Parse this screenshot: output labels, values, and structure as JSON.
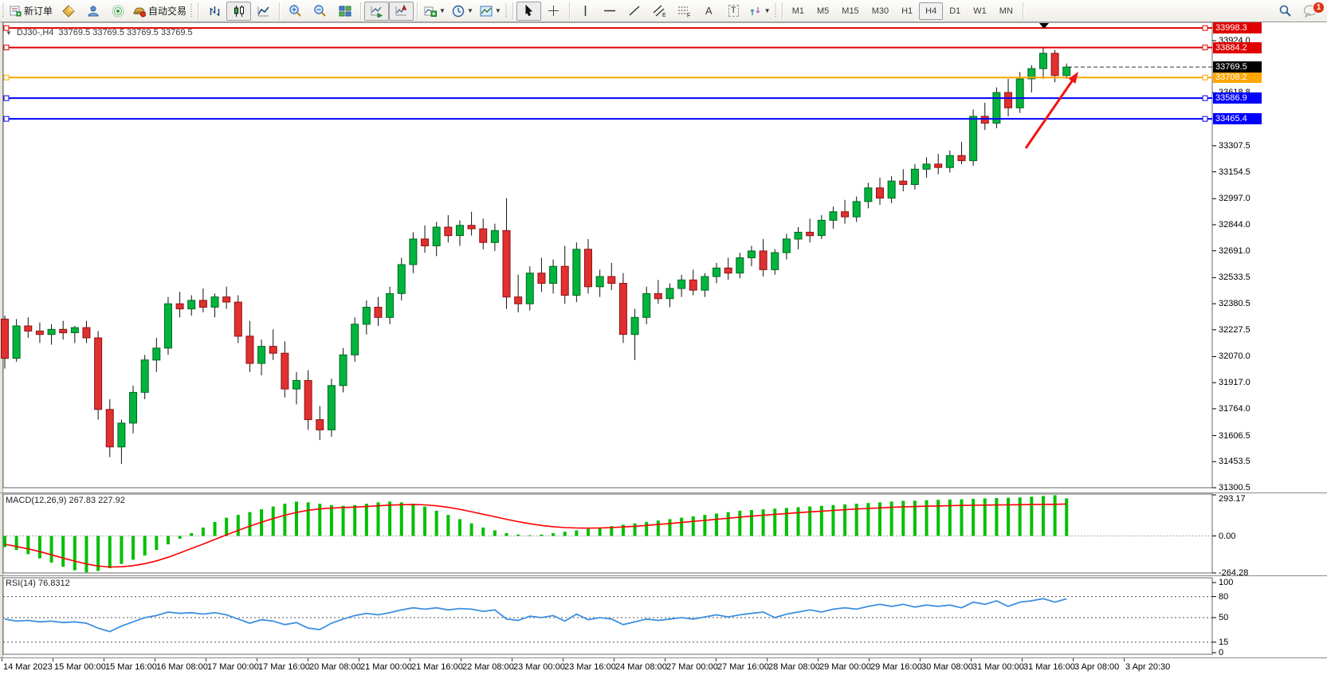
{
  "toolbar": {
    "new_order_label": "新订单",
    "auto_trading_label": "自动交易",
    "timeframes": [
      "M1",
      "M5",
      "M15",
      "M30",
      "H1",
      "H4",
      "D1",
      "W1",
      "MN"
    ],
    "active_timeframe": "H4",
    "chat_badge": "1",
    "tool_letters": {
      "channel": "E",
      "fibo": "F",
      "text": "A",
      "label": "T"
    }
  },
  "header": {
    "symbol": "DJ30-,H4",
    "ohlc": "33769.5 33769.5 33769.5 33769.5",
    "collapse_icon": "▼"
  },
  "chart_data": {
    "type": "candlestick",
    "symbol": "DJ30-",
    "timeframe": "H4",
    "price_axis": {
      "ticks": [
        "33924.0",
        "33618.8",
        "33307.5",
        "33154.5",
        "32997.0",
        "32844.0",
        "32691.0",
        "32533.5",
        "32380.5",
        "32227.5",
        "32070.0",
        "31917.0",
        "31764.0",
        "31606.5",
        "31453.5",
        "31300.5"
      ],
      "min": 31300.5,
      "max": 33998.3
    },
    "hlines": [
      {
        "price": 33998.3,
        "label": "33998.3",
        "color": "#e00000"
      },
      {
        "price": 33884.2,
        "label": "33884.2",
        "color": "#e00000"
      },
      {
        "price": 33708.2,
        "label": "33708.2",
        "color": "#ffa500"
      },
      {
        "price": 33586.9,
        "label": "33586.9",
        "color": "#0000ff"
      },
      {
        "price": 33465.4,
        "label": "33465.4",
        "color": "#0000ff"
      }
    ],
    "current_price": {
      "value": 33769.5,
      "label": "33769.5"
    },
    "candles": [
      [
        32290,
        32310,
        32000,
        32060
      ],
      [
        32060,
        32290,
        32040,
        32250
      ],
      [
        32250,
        32300,
        32180,
        32220
      ],
      [
        32220,
        32270,
        32150,
        32200
      ],
      [
        32200,
        32260,
        32140,
        32230
      ],
      [
        32230,
        32280,
        32170,
        32210
      ],
      [
        32210,
        32250,
        32150,
        32240
      ],
      [
        32240,
        32280,
        32150,
        32180
      ],
      [
        32180,
        32220,
        31700,
        31760
      ],
      [
        31760,
        31820,
        31480,
        31540
      ],
      [
        31540,
        31700,
        31440,
        31680
      ],
      [
        31680,
        31900,
        31620,
        31860
      ],
      [
        31860,
        32080,
        31820,
        32050
      ],
      [
        32050,
        32180,
        31980,
        32120
      ],
      [
        32120,
        32420,
        32080,
        32380
      ],
      [
        32380,
        32450,
        32300,
        32350
      ],
      [
        32350,
        32430,
        32310,
        32400
      ],
      [
        32400,
        32470,
        32330,
        32360
      ],
      [
        32360,
        32440,
        32300,
        32420
      ],
      [
        32420,
        32480,
        32350,
        32390
      ],
      [
        32390,
        32430,
        32150,
        32190
      ],
      [
        32190,
        32280,
        31980,
        32030
      ],
      [
        32030,
        32170,
        31960,
        32130
      ],
      [
        32130,
        32230,
        32050,
        32090
      ],
      [
        32090,
        32160,
        31830,
        31880
      ],
      [
        31880,
        31980,
        31790,
        31930
      ],
      [
        31930,
        31990,
        31640,
        31700
      ],
      [
        31700,
        31780,
        31580,
        31640
      ],
      [
        31640,
        31940,
        31600,
        31900
      ],
      [
        31900,
        32120,
        31860,
        32080
      ],
      [
        32080,
        32300,
        32040,
        32260
      ],
      [
        32260,
        32400,
        32200,
        32360
      ],
      [
        32360,
        32420,
        32250,
        32300
      ],
      [
        32300,
        32480,
        32260,
        32440
      ],
      [
        32440,
        32650,
        32400,
        32610
      ],
      [
        32610,
        32800,
        32560,
        32760
      ],
      [
        32760,
        32840,
        32680,
        32720
      ],
      [
        32720,
        32860,
        32660,
        32830
      ],
      [
        32830,
        32900,
        32740,
        32780
      ],
      [
        32780,
        32870,
        32720,
        32840
      ],
      [
        32840,
        32920,
        32780,
        32820
      ],
      [
        32820,
        32880,
        32700,
        32740
      ],
      [
        32740,
        32850,
        32690,
        32810
      ],
      [
        32810,
        33000,
        32350,
        32420
      ],
      [
        32420,
        32550,
        32330,
        32380
      ],
      [
        32380,
        32600,
        32340,
        32560
      ],
      [
        32560,
        32650,
        32450,
        32500
      ],
      [
        32500,
        32640,
        32440,
        32600
      ],
      [
        32600,
        32720,
        32380,
        32430
      ],
      [
        32430,
        32740,
        32390,
        32700
      ],
      [
        32700,
        32760,
        32440,
        32480
      ],
      [
        32480,
        32580,
        32420,
        32540
      ],
      [
        32540,
        32620,
        32460,
        32500
      ],
      [
        32500,
        32560,
        32150,
        32200
      ],
      [
        32200,
        32350,
        32050,
        32300
      ],
      [
        32300,
        32480,
        32260,
        32440
      ],
      [
        32440,
        32520,
        32380,
        32410
      ],
      [
        32410,
        32500,
        32360,
        32470
      ],
      [
        32470,
        32550,
        32420,
        32520
      ],
      [
        32520,
        32580,
        32430,
        32460
      ],
      [
        32460,
        32560,
        32420,
        32540
      ],
      [
        32540,
        32620,
        32500,
        32590
      ],
      [
        32590,
        32650,
        32520,
        32560
      ],
      [
        32560,
        32680,
        32530,
        32650
      ],
      [
        32650,
        32720,
        32600,
        32690
      ],
      [
        32690,
        32760,
        32540,
        32580
      ],
      [
        32580,
        32700,
        32550,
        32680
      ],
      [
        32680,
        32790,
        32640,
        32760
      ],
      [
        32760,
        32830,
        32700,
        32800
      ],
      [
        32800,
        32880,
        32740,
        32780
      ],
      [
        32780,
        32900,
        32760,
        32870
      ],
      [
        32870,
        32950,
        32820,
        32920
      ],
      [
        32920,
        32990,
        32850,
        32890
      ],
      [
        32890,
        33010,
        32860,
        32980
      ],
      [
        32980,
        33090,
        32940,
        33060
      ],
      [
        33060,
        33120,
        32960,
        33000
      ],
      [
        33000,
        33130,
        32970,
        33100
      ],
      [
        33100,
        33170,
        33040,
        33080
      ],
      [
        33080,
        33200,
        33050,
        33170
      ],
      [
        33170,
        33240,
        33120,
        33200
      ],
      [
        33200,
        33260,
        33140,
        33180
      ],
      [
        33180,
        33280,
        33150,
        33250
      ],
      [
        33250,
        33330,
        33200,
        33220
      ],
      [
        33220,
        33520,
        33190,
        33480
      ],
      [
        33480,
        33560,
        33400,
        33440
      ],
      [
        33440,
        33650,
        33410,
        33620
      ],
      [
        33620,
        33700,
        33480,
        33530
      ],
      [
        33530,
        33740,
        33500,
        33700
      ],
      [
        33700,
        33780,
        33620,
        33760
      ],
      [
        33760,
        33884,
        33700,
        33850
      ],
      [
        33850,
        33870,
        33680,
        33720
      ],
      [
        33720,
        33790,
        33700,
        33769.5
      ]
    ],
    "macd": {
      "label": "MACD(12,26,9) 267.83 227.92",
      "axis_ticks": [
        "293.17",
        "0.00",
        "-264.28"
      ],
      "max": 293.17,
      "min": -264.28,
      "histogram": [
        -80,
        -100,
        -130,
        -160,
        -190,
        -220,
        -245,
        -260,
        -250,
        -230,
        -200,
        -170,
        -140,
        -100,
        -60,
        -20,
        20,
        60,
        100,
        130,
        150,
        170,
        190,
        210,
        230,
        245,
        240,
        230,
        220,
        215,
        220,
        230,
        240,
        245,
        240,
        230,
        210,
        180,
        150,
        120,
        90,
        60,
        40,
        20,
        10,
        5,
        10,
        20,
        30,
        40,
        50,
        60,
        70,
        80,
        90,
        100,
        110,
        120,
        130,
        140,
        150,
        160,
        170,
        180,
        185,
        190,
        195,
        200,
        205,
        210,
        215,
        220,
        225,
        230,
        235,
        240,
        245,
        250,
        252,
        255,
        258,
        260,
        262,
        265,
        268,
        270,
        272,
        275,
        280,
        285,
        290,
        267.83
      ],
      "signal": [
        -60,
        -75,
        -92,
        -112,
        -135,
        -158,
        -180,
        -200,
        -215,
        -222,
        -220,
        -212,
        -198,
        -178,
        -152,
        -122,
        -90,
        -58,
        -25,
        8,
        40,
        70,
        98,
        124,
        148,
        168,
        183,
        193,
        199,
        203,
        206,
        210,
        215,
        220,
        223,
        224,
        222,
        215,
        204,
        190,
        173,
        155,
        137,
        119,
        102,
        87,
        75,
        66,
        60,
        57,
        56,
        57,
        60,
        64,
        69,
        75,
        82,
        89,
        96,
        104,
        111,
        119,
        126,
        134,
        141,
        148,
        154,
        160,
        166,
        172,
        177,
        182,
        187,
        192,
        196,
        200,
        204,
        207,
        210,
        212,
        214,
        216,
        218,
        219,
        220,
        221,
        222,
        223,
        224,
        225,
        226,
        227.92
      ]
    },
    "rsi": {
      "label": "RSI(14) 76.8312",
      "axis_ticks": [
        "100",
        "80",
        "50",
        "15",
        "0"
      ],
      "levels": [
        80,
        50,
        15
      ],
      "values": [
        48,
        45,
        46,
        44,
        45,
        43,
        44,
        42,
        35,
        30,
        38,
        44,
        50,
        53,
        58,
        56,
        57,
        55,
        57,
        54,
        48,
        42,
        47,
        45,
        40,
        43,
        35,
        33,
        42,
        48,
        53,
        56,
        54,
        57,
        61,
        64,
        62,
        64,
        61,
        63,
        62,
        59,
        61,
        48,
        46,
        52,
        50,
        53,
        45,
        55,
        47,
        50,
        48,
        40,
        44,
        48,
        46,
        48,
        50,
        48,
        51,
        54,
        51,
        54,
        56,
        58,
        50,
        55,
        58,
        61,
        58,
        62,
        64,
        62,
        66,
        69,
        66,
        69,
        65,
        68,
        66,
        68,
        64,
        72,
        69,
        74,
        66,
        72,
        74,
        77,
        72,
        76.83
      ]
    },
    "time_labels": [
      "14 Mar 2023",
      "15 Mar 00:00",
      "15 Mar 16:00",
      "16 Mar 08:00",
      "17 Mar 00:00",
      "17 Mar 16:00",
      "20 Mar 08:00",
      "21 Mar 00:00",
      "21 Mar 16:00",
      "22 Mar 08:00",
      "23 Mar 00:00",
      "23 Mar 16:00",
      "24 Mar 08:00",
      "27 Mar 00:00",
      "27 Mar 16:00",
      "28 Mar 08:00",
      "29 Mar 00:00",
      "29 Mar 16:00",
      "30 Mar 08:00",
      "31 Mar 00:00",
      "31 Mar 16:00",
      "3 Apr 08:00",
      "3 Apr 20:30"
    ],
    "colors": {
      "up": "#00b43c",
      "down": "#e03030",
      "up_border": "#006622",
      "down_border": "#8f1212",
      "wick": "#111111",
      "macd_hist": "#00c000",
      "macd_signal": "#ff0000",
      "rsi_line": "#3e8fe0",
      "arrow": "#f01515"
    }
  }
}
